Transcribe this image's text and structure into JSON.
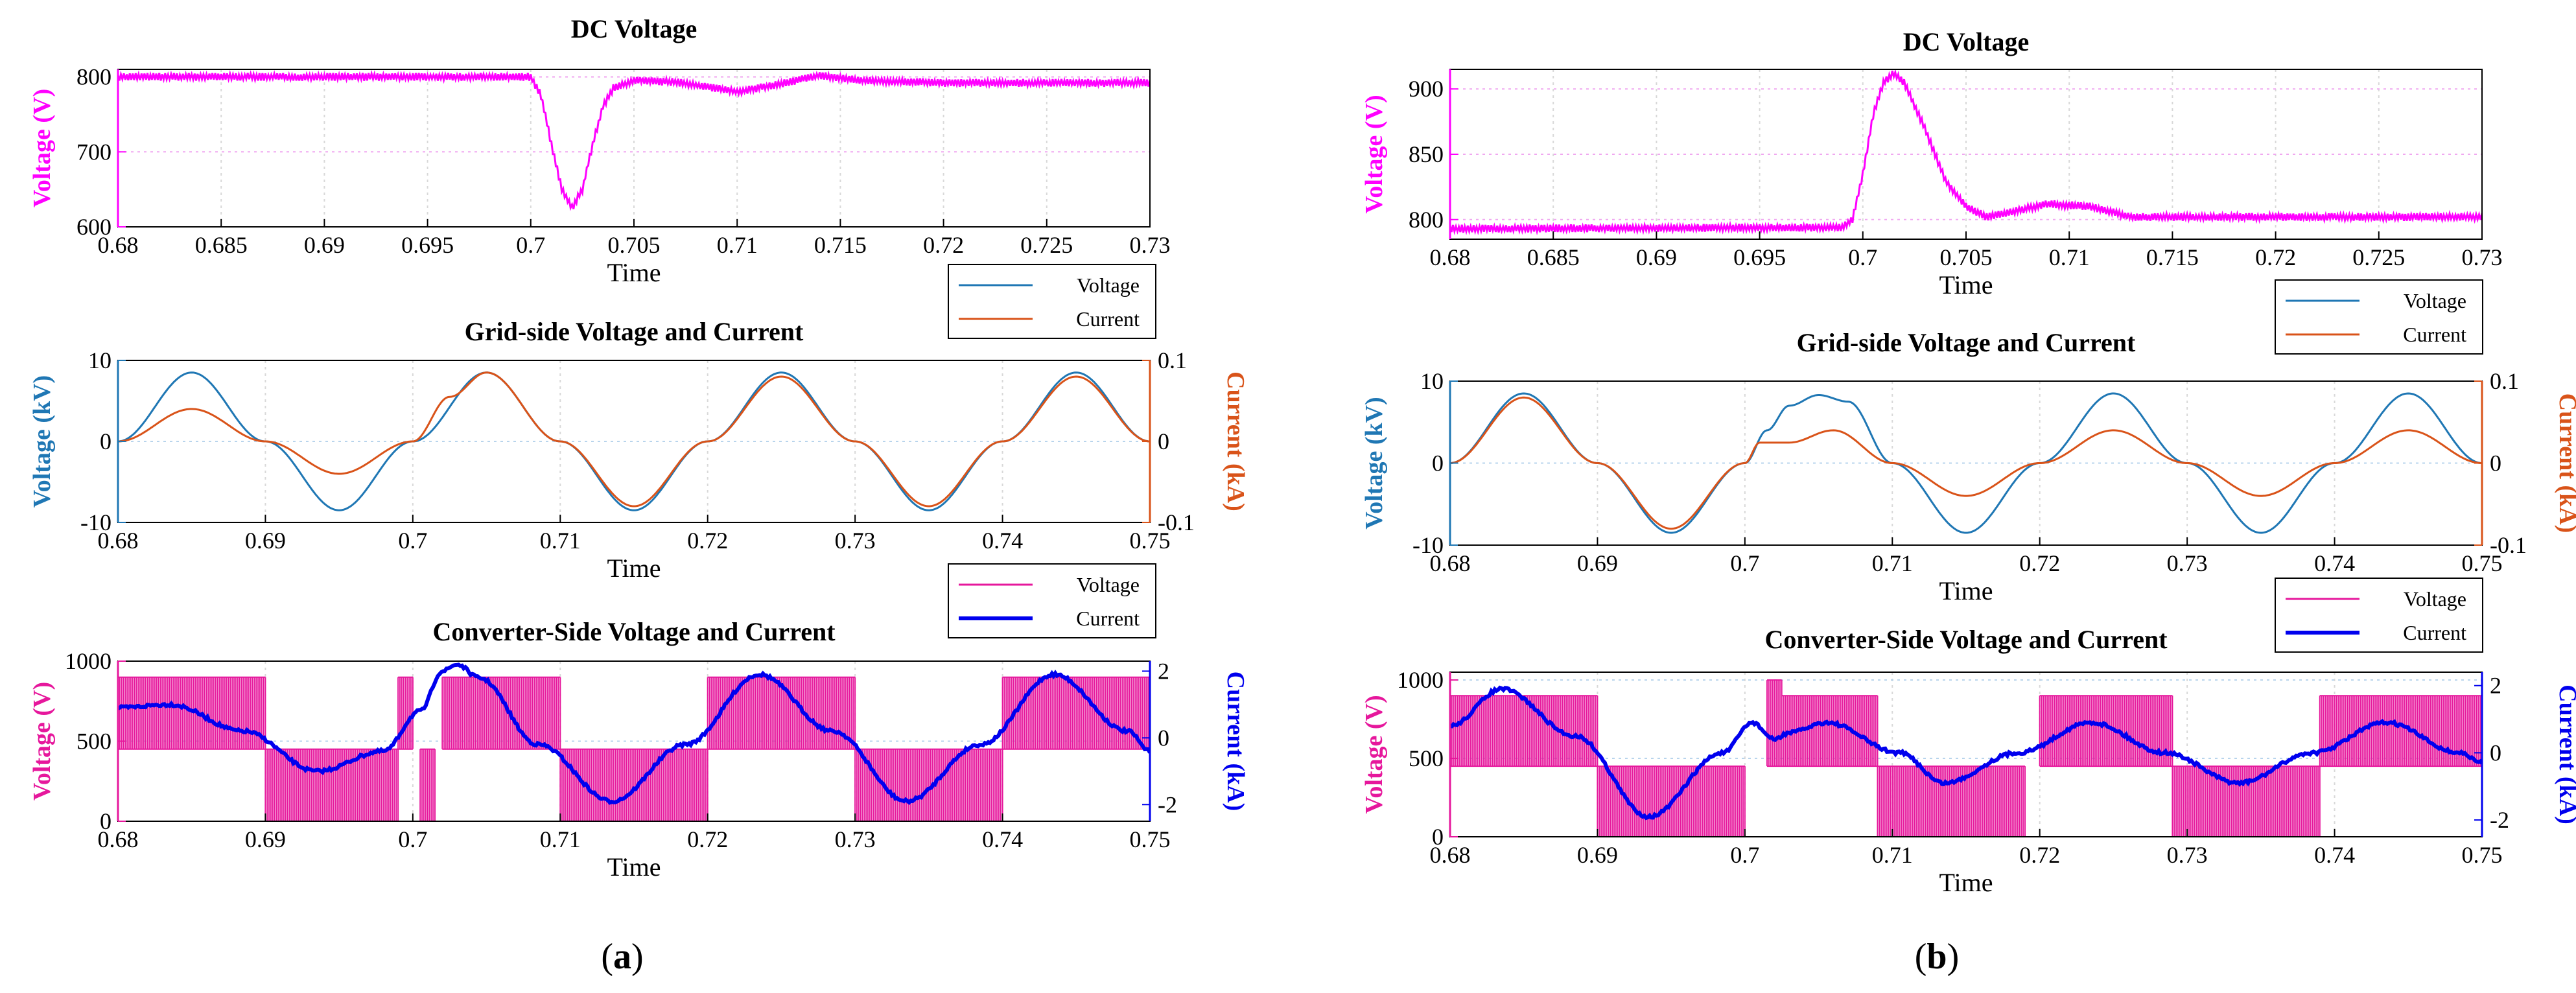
{
  "panels": [
    {
      "label": "(a)",
      "label_parts": [
        "(",
        "a",
        ")"
      ]
    },
    {
      "label": "(b)",
      "label_parts": [
        "(",
        "b",
        ")"
      ]
    }
  ],
  "colors": {
    "dc_magenta": "#ff00ff",
    "grid_voltage": "#1f77b4",
    "grid_current": "#d95319",
    "conv_voltage": "#e6179c",
    "conv_current": "#0000ee"
  },
  "chart_data": [
    {
      "id": "a-dc",
      "type": "line",
      "title": "DC Voltage",
      "xlabel": "Time",
      "ylabel": "Voltage (V)",
      "xlim": [
        0.68,
        0.73
      ],
      "xticks": [
        0.68,
        0.685,
        0.69,
        0.695,
        0.7,
        0.705,
        0.71,
        0.715,
        0.72,
        0.725,
        0.73
      ],
      "xtick_labels": [
        "0.68",
        "0.685",
        "0.69",
        "0.695",
        "0.7",
        "0.705",
        "0.71",
        "0.715",
        "0.72",
        "0.725",
        "0.73"
      ],
      "ylim": [
        600,
        810
      ],
      "yticks": [
        600,
        700,
        800
      ],
      "ytick_labels": [
        "600",
        "700",
        "800"
      ],
      "grid": true,
      "series": [
        {
          "name": "",
          "x": [
            0.68,
            0.7,
            0.7005,
            0.701,
            0.7015,
            0.702,
            0.7025,
            0.703,
            0.7035,
            0.704,
            0.705,
            0.707,
            0.709,
            0.71,
            0.712,
            0.714,
            0.716,
            0.72,
            0.725,
            0.73
          ],
          "y": [
            800,
            800,
            775,
            710,
            650,
            625,
            650,
            710,
            760,
            785,
            795,
            793,
            785,
            780,
            790,
            802,
            795,
            792,
            792,
            792
          ]
        }
      ]
    },
    {
      "id": "a-grid",
      "type": "line",
      "title": "Grid-side Voltage and Current",
      "xlabel": "Time",
      "ylabel": "Voltage (kV)",
      "ylabel_right": "Current (kA)",
      "xlim": [
        0.68,
        0.75
      ],
      "xticks": [
        0.68,
        0.69,
        0.7,
        0.71,
        0.72,
        0.73,
        0.74,
        0.75
      ],
      "xtick_labels": [
        "0.68",
        "0.69",
        "0.7",
        "0.71",
        "0.72",
        "0.73",
        "0.74",
        "0.75"
      ],
      "ylim": [
        -10,
        10
      ],
      "yticks": [
        -10,
        0,
        10
      ],
      "ytick_labels": [
        "-10",
        "0",
        "10"
      ],
      "ylim_right": [
        -0.1,
        0.1
      ],
      "yticks_right": [
        -0.1,
        0,
        0.1
      ],
      "ytick_labels_right": [
        "-0.1",
        "0",
        "0.1"
      ],
      "legend": "bottom-right",
      "series": [
        {
          "name": "Voltage",
          "axis": "left",
          "x": [
            0.68,
            0.685,
            0.69,
            0.695,
            0.7,
            0.705,
            0.71,
            0.715,
            0.72,
            0.725,
            0.73,
            0.735,
            0.74,
            0.745,
            0.75
          ],
          "y": [
            0,
            8.5,
            0,
            -8.5,
            0,
            8.5,
            0,
            -8.5,
            0,
            8.5,
            0,
            -8.5,
            0,
            8.5,
            0
          ]
        },
        {
          "name": "Current",
          "axis": "right",
          "x": [
            0.68,
            0.685,
            0.69,
            0.695,
            0.7,
            0.7025,
            0.705,
            0.71,
            0.715,
            0.72,
            0.725,
            0.73,
            0.735,
            0.74,
            0.745,
            0.75
          ],
          "y": [
            0,
            0.04,
            0,
            -0.04,
            0,
            0.055,
            0.085,
            0,
            -0.08,
            0,
            0.08,
            0,
            -0.08,
            0,
            0.08,
            0
          ]
        }
      ]
    },
    {
      "id": "a-conv",
      "type": "line",
      "title": "Converter-Side Voltage and Current",
      "xlabel": "Time",
      "ylabel": "Voltage (V)",
      "ylabel_right": "Current (kA)",
      "xlim": [
        0.68,
        0.75
      ],
      "xticks": [
        0.68,
        0.69,
        0.7,
        0.71,
        0.72,
        0.73,
        0.74,
        0.75
      ],
      "xtick_labels": [
        "0.68",
        "0.69",
        "0.7",
        "0.71",
        "0.72",
        "0.73",
        "0.74",
        "0.75"
      ],
      "ylim": [
        0,
        1000
      ],
      "yticks": [
        0,
        500,
        1000
      ],
      "ytick_labels": [
        "0",
        "500",
        "1000"
      ],
      "ylim_right": [
        -2.5,
        2.3
      ],
      "yticks_right": [
        -2,
        0,
        2
      ],
      "ytick_labels_right": [
        "-2",
        "0",
        "2"
      ],
      "legend": "bottom-right",
      "series": [
        {
          "name": "Voltage",
          "axis": "left",
          "pwm_bands": [
            {
              "x0": 0.68,
              "x1": 0.69,
              "lo": 450,
              "hi": 900
            },
            {
              "x0": 0.69,
              "x1": 0.699,
              "lo": 0,
              "hi": 450
            },
            {
              "x0": 0.699,
              "x1": 0.7,
              "lo": 450,
              "hi": 900
            },
            {
              "x0": 0.7005,
              "x1": 0.7015,
              "lo": 0,
              "hi": 450
            },
            {
              "x0": 0.702,
              "x1": 0.71,
              "lo": 450,
              "hi": 900
            },
            {
              "x0": 0.71,
              "x1": 0.72,
              "lo": 0,
              "hi": 450
            },
            {
              "x0": 0.72,
              "x1": 0.73,
              "lo": 450,
              "hi": 900
            },
            {
              "x0": 0.73,
              "x1": 0.74,
              "lo": 0,
              "hi": 450
            },
            {
              "x0": 0.74,
              "x1": 0.75,
              "lo": 450,
              "hi": 900
            }
          ]
        },
        {
          "name": "Current",
          "axis": "right",
          "x": [
            0.68,
            0.6835,
            0.6885,
            0.6935,
            0.698,
            0.7005,
            0.702,
            0.703,
            0.7045,
            0.7085,
            0.7135,
            0.7185,
            0.7235,
            0.7285,
            0.7335,
            0.7385,
            0.7435,
            0.7485,
            0.75
          ],
          "y": [
            0.9,
            1.0,
            0.2,
            -1.0,
            -0.4,
            0.8,
            2.0,
            2.2,
            1.8,
            -0.2,
            -1.9,
            -0.2,
            1.9,
            0.2,
            -1.9,
            -0.2,
            1.9,
            0.2,
            -0.4
          ]
        }
      ]
    },
    {
      "id": "b-dc",
      "type": "line",
      "title": "DC Voltage",
      "xlabel": "Time",
      "ylabel": "Voltage (V)",
      "xlim": [
        0.68,
        0.73
      ],
      "xticks": [
        0.68,
        0.685,
        0.69,
        0.695,
        0.7,
        0.705,
        0.71,
        0.715,
        0.72,
        0.725,
        0.73
      ],
      "xtick_labels": [
        "0.68",
        "0.685",
        "0.69",
        "0.695",
        "0.7",
        "0.705",
        "0.71",
        "0.715",
        "0.72",
        "0.725",
        "0.73"
      ],
      "ylim": [
        785,
        915
      ],
      "yticks": [
        800,
        850,
        900
      ],
      "ytick_labels": [
        "800",
        "850",
        "900"
      ],
      "grid": true,
      "series": [
        {
          "name": "",
          "x": [
            0.68,
            0.699,
            0.6995,
            0.7,
            0.7005,
            0.701,
            0.7015,
            0.702,
            0.703,
            0.704,
            0.705,
            0.706,
            0.707,
            0.709,
            0.711,
            0.713,
            0.72,
            0.73
          ],
          "y": [
            793,
            794,
            800,
            835,
            880,
            905,
            912,
            905,
            870,
            830,
            810,
            802,
            805,
            812,
            810,
            802,
            802,
            802
          ]
        }
      ]
    },
    {
      "id": "b-grid",
      "type": "line",
      "title": "Grid-side Voltage and Current",
      "xlabel": "Time",
      "ylabel": "Voltage (kV)",
      "ylabel_right": "Current (kA)",
      "xlim": [
        0.68,
        0.75
      ],
      "xticks": [
        0.68,
        0.69,
        0.7,
        0.71,
        0.72,
        0.73,
        0.74,
        0.75
      ],
      "xtick_labels": [
        "0.68",
        "0.69",
        "0.7",
        "0.71",
        "0.72",
        "0.73",
        "0.74",
        "0.75"
      ],
      "ylim": [
        -10,
        10
      ],
      "yticks": [
        -10,
        0,
        10
      ],
      "ytick_labels": [
        "-10",
        "0",
        "10"
      ],
      "ylim_right": [
        -0.1,
        0.1
      ],
      "yticks_right": [
        -0.1,
        0,
        0.1
      ],
      "ytick_labels_right": [
        "-0.1",
        "0",
        "0.1"
      ],
      "legend": "bottom-right",
      "series": [
        {
          "name": "Voltage",
          "axis": "left",
          "x": [
            0.68,
            0.685,
            0.69,
            0.695,
            0.7,
            0.7015,
            0.703,
            0.705,
            0.707,
            0.71,
            0.715,
            0.72,
            0.725,
            0.73,
            0.735,
            0.74,
            0.745,
            0.75
          ],
          "y": [
            0,
            8.5,
            0,
            -8.5,
            0,
            4,
            7,
            8.3,
            7.5,
            0,
            -8.5,
            0,
            8.5,
            0,
            -8.5,
            0,
            8.5,
            0
          ]
        },
        {
          "name": "Current",
          "axis": "right",
          "x": [
            0.68,
            0.685,
            0.69,
            0.695,
            0.7,
            0.701,
            0.703,
            0.706,
            0.71,
            0.715,
            0.72,
            0.725,
            0.73,
            0.735,
            0.74,
            0.745,
            0.75
          ],
          "y": [
            0,
            0.08,
            0,
            -0.08,
            0,
            0.025,
            0.025,
            0.04,
            0,
            -0.04,
            0,
            0.04,
            0,
            -0.04,
            0,
            0.04,
            0
          ]
        }
      ]
    },
    {
      "id": "b-conv",
      "type": "line",
      "title": "Converter-Side Voltage and Current",
      "xlabel": "Time",
      "ylabel": "Voltage (V)",
      "ylabel_right": "Current (kA)",
      "xlim": [
        0.68,
        0.75
      ],
      "xticks": [
        0.68,
        0.69,
        0.7,
        0.71,
        0.72,
        0.73,
        0.74,
        0.75
      ],
      "xtick_labels": [
        "0.68",
        "0.69",
        "0.7",
        "0.71",
        "0.72",
        "0.73",
        "0.74",
        "0.75"
      ],
      "ylim": [
        0,
        1050
      ],
      "yticks": [
        0,
        500,
        1000
      ],
      "ytick_labels": [
        "0",
        "500",
        "1000"
      ],
      "ylim_right": [
        -2.5,
        2.4
      ],
      "yticks_right": [
        -2,
        0,
        2
      ],
      "ytick_labels_right": [
        "-2",
        "0",
        "2"
      ],
      "legend": "bottom-right",
      "series": [
        {
          "name": "Voltage",
          "axis": "left",
          "pwm_bands": [
            {
              "x0": 0.68,
              "x1": 0.69,
              "lo": 450,
              "hi": 900
            },
            {
              "x0": 0.69,
              "x1": 0.7,
              "lo": 0,
              "hi": 450
            },
            {
              "x0": 0.7015,
              "x1": 0.7025,
              "lo": 450,
              "hi": 1000
            },
            {
              "x0": 0.7025,
              "x1": 0.709,
              "lo": 450,
              "hi": 900
            },
            {
              "x0": 0.709,
              "x1": 0.719,
              "lo": 0,
              "hi": 450
            },
            {
              "x0": 0.72,
              "x1": 0.729,
              "lo": 450,
              "hi": 900
            },
            {
              "x0": 0.729,
              "x1": 0.739,
              "lo": 0,
              "hi": 450
            },
            {
              "x0": 0.739,
              "x1": 0.75,
              "lo": 450,
              "hi": 900
            }
          ]
        },
        {
          "name": "Current",
          "axis": "right",
          "x": [
            0.68,
            0.6835,
            0.6885,
            0.6935,
            0.6985,
            0.7005,
            0.702,
            0.703,
            0.7055,
            0.7105,
            0.7135,
            0.7185,
            0.7235,
            0.7285,
            0.7335,
            0.7385,
            0.7435,
            0.7485,
            0.75
          ],
          "y": [
            0.8,
            1.9,
            0.5,
            -1.9,
            0,
            0.9,
            0.4,
            0.6,
            0.9,
            0,
            -0.9,
            0,
            0.9,
            0,
            -0.9,
            0,
            0.9,
            0,
            -0.3
          ]
        }
      ]
    }
  ]
}
